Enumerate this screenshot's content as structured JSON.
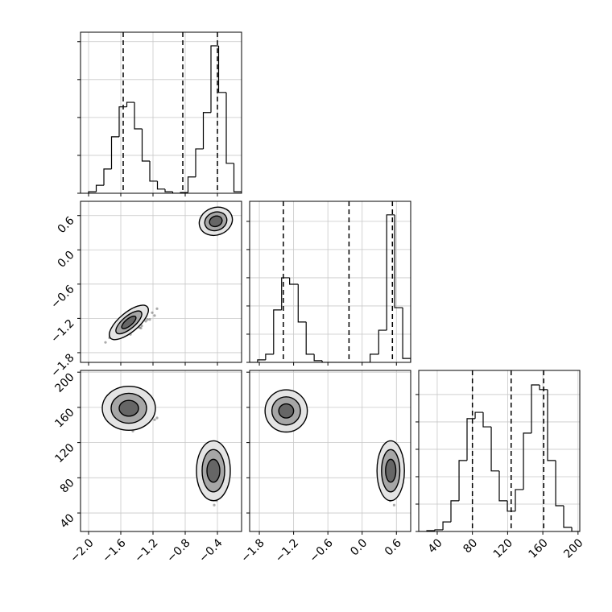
{
  "chart_data": {
    "type": "corner",
    "grid": true,
    "hist_color": "#000000",
    "point_color": "#444444",
    "level_colors": [
      "#e4e4e4",
      "#a6a6a6",
      "#666666"
    ],
    "params": [
      {
        "xlim": [
          -2.1,
          -0.1
        ],
        "xticks": [
          {
            "value": -2.0,
            "label": "−2.0"
          },
          {
            "value": -1.6,
            "label": "−1.6"
          },
          {
            "value": -1.2,
            "label": "−1.2"
          },
          {
            "value": -0.8,
            "label": "−0.8"
          },
          {
            "value": -0.4,
            "label": "−0.4"
          }
        ],
        "bins": [
          -2.0,
          -1.905,
          -1.81,
          -1.715,
          -1.62,
          -1.525,
          -1.43,
          -1.335,
          -1.24,
          -1.145,
          -1.05,
          -0.955,
          -0.86,
          -0.765,
          -0.67,
          -0.575,
          -0.48,
          -0.385,
          -0.29,
          -0.195,
          -0.1
        ],
        "counts": [
          4,
          21,
          64,
          149,
          228,
          240,
          170,
          85,
          32,
          11,
          4,
          0,
          2,
          43,
          117,
          213,
          389,
          266,
          79,
          4
        ],
        "count_lim": [
          0,
          425
        ],
        "count_ticks": [
          0,
          100,
          200,
          300,
          400
        ],
        "quantiles": [
          -1.57,
          -0.83,
          -0.4
        ],
        "samples": [
          -1.4,
          -1.64,
          -1.32,
          -1.53,
          -1.21,
          -1.47,
          -1.35,
          -1.74,
          -1.27,
          -1.56,
          -1.42,
          -1.5,
          -1.15,
          -1.61,
          -1.37,
          -1.55,
          -1.45,
          -1.24,
          -1.69,
          -1.31,
          -1.48,
          -1.39,
          -1.59,
          -1.18,
          -1.66,
          -1.34,
          -1.51,
          -1.43,
          -1.79,
          -1.29,
          -0.44,
          -0.37,
          -0.35,
          -0.49,
          -0.4,
          -0.38,
          -0.52,
          -0.41,
          -0.45,
          -0.34,
          -0.47,
          -0.41,
          -0.38,
          -0.43,
          -0.5,
          -0.31,
          -0.39,
          -0.47,
          -0.43,
          -0.36,
          -0.52,
          -0.4,
          -0.37,
          -0.46,
          -0.33,
          -0.49,
          -0.42,
          -0.3,
          -0.44,
          -0.46
        ]
      },
      {
        "xlim": [
          -1.97,
          0.85
        ],
        "xticks": [
          {
            "value": -1.8,
            "label": "−1.8"
          },
          {
            "value": -1.2,
            "label": "−1.2"
          },
          {
            "value": -0.6,
            "label": "−0.6"
          },
          {
            "value": 0.0,
            "label": "0.0"
          },
          0.6
        ],
        "bins": [
          -1.97,
          -1.83,
          -1.69,
          -1.55,
          -1.41,
          -1.27,
          -1.12,
          -0.98,
          -0.84,
          -0.7,
          -0.56,
          -0.42,
          -0.28,
          -0.14,
          0.0,
          0.14,
          0.29,
          0.43,
          0.57,
          0.71,
          0.85
        ],
        "counts": [
          0,
          9,
          29,
          186,
          300,
          277,
          143,
          29,
          6,
          0,
          0,
          0,
          0,
          0,
          0,
          29,
          114,
          523,
          194,
          14
        ],
        "count_lim": [
          0,
          571
        ],
        "count_ticks": [
          0,
          100,
          200,
          300,
          400,
          500
        ],
        "quantiles": [
          -1.38,
          -0.23,
          0.53
        ],
        "samples": [
          -1.31,
          -1.4,
          -1.12,
          -1.47,
          -1.1,
          -1.28,
          -1.37,
          -1.54,
          -1.22,
          -1.3,
          -1.36,
          -1.35,
          -1.03,
          -1.47,
          -1.36,
          -1.25,
          -1.28,
          -1.22,
          -1.52,
          -1.12,
          -1.48,
          -1.24,
          -1.37,
          -1.15,
          -1.37,
          -1.33,
          -1.37,
          -1.15,
          -1.62,
          -1.25,
          0.54,
          0.48,
          0.42,
          0.52,
          0.5,
          0.45,
          0.57,
          0.49,
          0.53,
          0.41,
          0.51,
          0.55,
          0.46,
          0.44,
          0.49,
          0.51,
          0.39,
          0.54,
          0.57,
          0.47,
          0.53,
          0.43,
          0.5,
          0.45,
          0.59,
          0.52,
          0.48,
          0.44,
          0.56,
          0.47
        ]
      },
      {
        "xlim": [
          19,
          202
        ],
        "xticks": [
          40,
          80,
          120,
          160,
          200
        ],
        "bins": [
          19,
          28.2,
          37.3,
          46.5,
          55.6,
          64.8,
          73.9,
          83.1,
          92.2,
          101.4,
          110.5,
          119.7,
          128.8,
          138,
          147.1,
          156.3,
          165.4,
          174.6,
          183.7,
          192.9,
          202
        ],
        "counts": [
          0,
          3,
          6,
          35,
          112,
          259,
          412,
          435,
          382,
          221,
          112,
          74,
          153,
          359,
          535,
          518,
          259,
          94,
          15,
          0
        ],
        "count_lim": [
          0,
          588
        ],
        "count_ticks": [
          0,
          100,
          200,
          300,
          400,
          500
        ],
        "quantiles": [
          80,
          124,
          161
        ],
        "samples": [
          166,
          152,
          140,
          162,
          157,
          145,
          172,
          154,
          164,
          136,
          159,
          168,
          148,
          143,
          155,
          158,
          133,
          165,
          173,
          150,
          163,
          141,
          156,
          146,
          176,
          161,
          153,
          144,
          169,
          151,
          90,
          65,
          99,
          77,
          111,
          83,
          95,
          54,
          104,
          73,
          88,
          80,
          117,
          68,
          94,
          75,
          85,
          107,
          60,
          100,
          82,
          92,
          70,
          114,
          63,
          97,
          78,
          87,
          49,
          102
        ]
      }
    ],
    "contours": [
      [
        {
          "cx": -1.5,
          "cy": -1.27,
          "rx": [
            0.3,
            0.2,
            0.11
          ],
          "ry": [
            0.17,
            0.11,
            0.06
          ],
          "angle": -40
        },
        {
          "cx": -0.42,
          "cy": 0.5,
          "rx": [
            0.21,
            0.14,
            0.08
          ],
          "ry": [
            0.24,
            0.16,
            0.09
          ],
          "angle": -20
        }
      ],
      [
        {
          "cx": -1.5,
          "cy": 159,
          "rx": [
            0.33,
            0.22,
            0.12
          ],
          "ry": [
            25,
            17,
            9
          ]
        },
        {
          "cx": -0.45,
          "cy": 88,
          "rx": [
            0.21,
            0.14,
            0.08
          ],
          "ry": [
            34,
            24,
            13
          ]
        }
      ],
      [
        {
          "cx": -1.33,
          "cy": 156,
          "rx": [
            0.37,
            0.25,
            0.13
          ],
          "ry": [
            24,
            16,
            8
          ]
        },
        {
          "cx": 0.5,
          "cy": 88,
          "rx": [
            0.24,
            0.16,
            0.09
          ],
          "ry": [
            34,
            24,
            13
          ]
        }
      ]
    ]
  }
}
